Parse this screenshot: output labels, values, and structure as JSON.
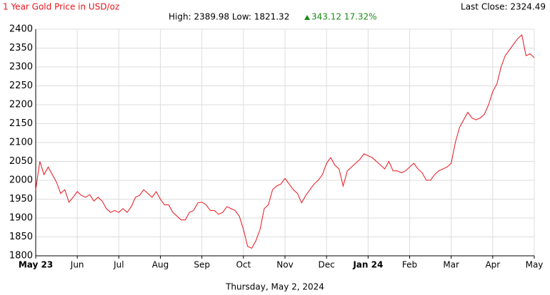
{
  "chart_data": {
    "type": "line",
    "title": "1 Year Gold Price in USD/oz",
    "stats": "High: 2389.98 Low: 1821.32",
    "change": "343.12 17.32%",
    "last_close": "Last Close: 2324.49",
    "date": "Thursday, May 2, 2024",
    "categories": [
      "May 23",
      null,
      null,
      null,
      null,
      null,
      null,
      null,
      null,
      null,
      "Jun",
      null,
      null,
      null,
      null,
      null,
      null,
      null,
      null,
      null,
      "Jul",
      null,
      null,
      null,
      null,
      null,
      null,
      null,
      null,
      null,
      "Aug",
      null,
      null,
      null,
      null,
      null,
      null,
      null,
      null,
      null,
      "Sep",
      null,
      null,
      null,
      null,
      null,
      null,
      null,
      null,
      null,
      "Oct",
      null,
      null,
      null,
      null,
      null,
      null,
      null,
      null,
      null,
      "Nov",
      null,
      null,
      null,
      null,
      null,
      null,
      null,
      null,
      null,
      "Dec",
      null,
      null,
      null,
      null,
      null,
      null,
      null,
      null,
      null,
      "Jan 24",
      null,
      null,
      null,
      null,
      null,
      null,
      null,
      null,
      null,
      "Feb",
      null,
      null,
      null,
      null,
      null,
      null,
      null,
      null,
      null,
      "Mar",
      null,
      null,
      null,
      null,
      null,
      null,
      null,
      null,
      null,
      "Apr",
      null,
      null,
      null,
      null,
      null,
      null,
      null,
      null,
      null,
      "May"
    ],
    "values": [
      1975,
      2050,
      2015,
      2035,
      2015,
      1995,
      1965,
      1975,
      1942,
      1955,
      1970,
      1960,
      1955,
      1962,
      1945,
      1955,
      1945,
      1925,
      1915,
      1920,
      1915,
      1925,
      1915,
      1930,
      1955,
      1960,
      1975,
      1965,
      1955,
      1970,
      1950,
      1935,
      1935,
      1915,
      1905,
      1895,
      1895,
      1915,
      1920,
      1940,
      1942,
      1935,
      1920,
      1920,
      1910,
      1915,
      1930,
      1925,
      1920,
      1905,
      1870,
      1825,
      1820,
      1840,
      1870,
      1925,
      1935,
      1975,
      1985,
      1990,
      2005,
      1990,
      1975,
      1965,
      1940,
      1960,
      1975,
      1990,
      2000,
      2015,
      2045,
      2060,
      2040,
      2030,
      1985,
      2025,
      2035,
      2045,
      2055,
      2070,
      2065,
      2060,
      2050,
      2040,
      2030,
      2050,
      2025,
      2025,
      2020,
      2025,
      2035,
      2045,
      2030,
      2020,
      2000,
      2000,
      2015,
      2025,
      2030,
      2035,
      2045,
      2100,
      2140,
      2160,
      2180,
      2165,
      2160,
      2165,
      2175,
      2200,
      2235,
      2255,
      2300,
      2330,
      2345,
      2360,
      2375,
      2385,
      2330,
      2335,
      2324.49
    ],
    "color": "#e8141c",
    "ylim": [
      1800,
      2400
    ],
    "yticks": [
      1800,
      1850,
      1900,
      1950,
      2000,
      2050,
      2100,
      2150,
      2200,
      2250,
      2300,
      2350,
      2400
    ],
    "grid": true
  }
}
